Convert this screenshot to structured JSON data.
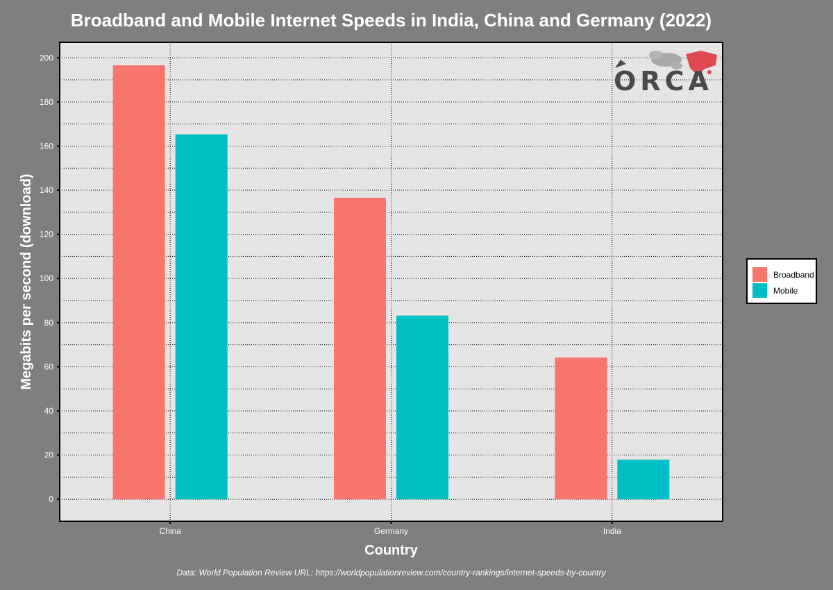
{
  "colors": {
    "page_background": "#7f7f7f",
    "panel_background": "#e5e5e5",
    "broadband": "#f8766d",
    "mobile": "#00bfc4"
  },
  "logo": {
    "text": "ORCA"
  },
  "chart_data": {
    "type": "bar",
    "title": "Broadband and Mobile Internet Speeds in India, China and Germany (2022)",
    "xlabel": "Country",
    "ylabel": "Megabits per second (download)",
    "categories": [
      "China",
      "Germany",
      "India"
    ],
    "series": [
      {
        "name": "Broadband",
        "values": [
          196.6,
          136.6,
          64.2
        ]
      },
      {
        "name": "Mobile",
        "values": [
          165.3,
          83.2,
          17.9
        ]
      }
    ],
    "ylim": [
      -10,
      207
    ],
    "yticks": [
      0,
      20,
      40,
      60,
      80,
      100,
      120,
      140,
      160,
      180,
      200
    ],
    "grid": "dotted",
    "legend_position": "right",
    "caption": "Data: World Population Review URL: https://worldpopulationreview.com/country-rankings/internet-speeds-by-country"
  }
}
